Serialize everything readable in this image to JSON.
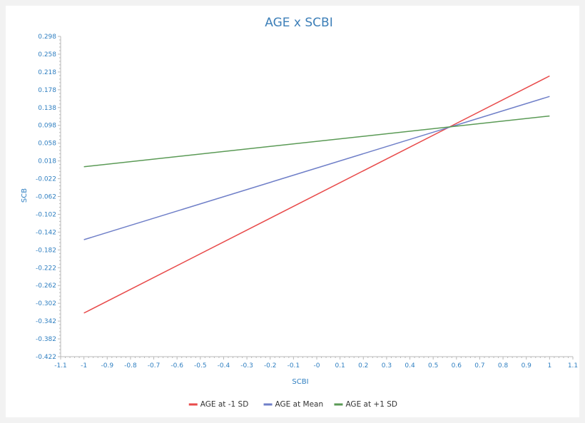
{
  "chart_data": {
    "type": "line",
    "title": "AGE x SCBI",
    "xlabel": "SCBI",
    "ylabel": "SCB",
    "xlim": [
      -1.1,
      1.1
    ],
    "ylim": [
      -0.422,
      0.298
    ],
    "x_ticks": [
      "-1.1",
      "-1",
      "-0.9",
      "-0.8",
      "-0.7",
      "-0.6",
      "-0.5",
      "-0.4",
      "-0.3",
      "-0.2",
      "-0.1",
      "-0",
      "0.1",
      "0.2",
      "0.3",
      "0.4",
      "0.5",
      "0.6",
      "0.7",
      "0.8",
      "0.9",
      "1",
      "1.1"
    ],
    "y_ticks": [
      "0.298",
      "0.258",
      "0.218",
      "0.178",
      "0.138",
      "0.098",
      "0.058",
      "0.018",
      "-0.022",
      "-0.062",
      "-0.102",
      "-0.142",
      "-0.182",
      "-0.222",
      "-0.262",
      "-0.302",
      "-0.342",
      "-0.382",
      "-0.422"
    ],
    "grid": false,
    "legend_position": "bottom",
    "series": [
      {
        "name": "AGE at -1 SD",
        "color": "#e84a4a",
        "x": [
          -1,
          1
        ],
        "y": [
          -0.324,
          0.209
        ]
      },
      {
        "name": "AGE at Mean",
        "color": "#6f7fc8",
        "x": [
          -1,
          1
        ],
        "y": [
          -0.159,
          0.163
        ]
      },
      {
        "name": "AGE at +1 SD",
        "color": "#5a9a55",
        "x": [
          -1,
          1
        ],
        "y": [
          0.005,
          0.119
        ]
      }
    ]
  }
}
